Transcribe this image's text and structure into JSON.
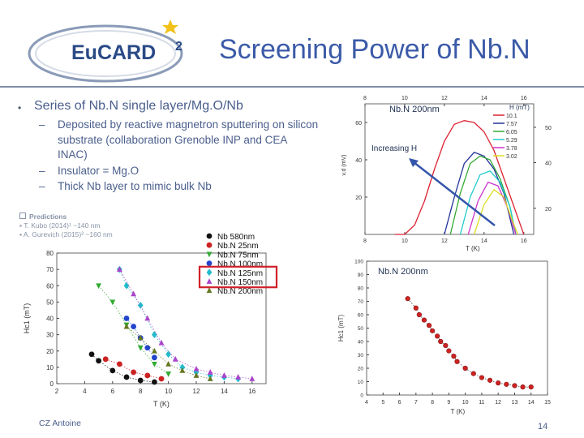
{
  "slide": {
    "title": "Screening Power of Nb.N",
    "logo_text": "EuCARD",
    "logo_superscript": "2",
    "bullet": "Series of Nb.N single layer/Mg.O/Nb",
    "sub_bullets": [
      "Deposited by reactive magnetron sputtering on silicon substrate (collaboration Grenoble INP and CEA INAC)",
      "Insulator = Mg.O",
      "Thick Nb layer to mimic bulk Nb"
    ],
    "predictions": {
      "heading": "Predictions",
      "items": [
        "T. Kubo (2014)¹ ~140 nm",
        "A. Gurevich (2015)² ~160 nm"
      ]
    },
    "footer": "CZ Antoine",
    "page_number": "14",
    "colors": {
      "title": "#3b5aa8",
      "text": "#4a5e8c",
      "highlight_box": "#d0202a",
      "arrow": "#3355aa"
    }
  },
  "chart_data": [
    {
      "type": "scatter",
      "title": "",
      "xlabel": "T (K)",
      "ylabel": "Hc1 (mT)",
      "xlim": [
        2,
        17
      ],
      "ylim": [
        0,
        80
      ],
      "xticks": [
        "2",
        "4",
        "6",
        "8",
        "10",
        "12",
        "14",
        "16"
      ],
      "yticks": [
        "0",
        "10",
        "20",
        "30",
        "40",
        "50",
        "60",
        "70",
        "80"
      ],
      "legend": [
        "Nb 580nm",
        "Nb.N 25nm",
        "Nb.N 75nm",
        "Nb.N 100nm",
        "Nb.N 125nm",
        "Nb.N 150nm",
        "Nb.N 200nm"
      ],
      "highlighted": [
        "Nb.N 125nm",
        "Nb.N 150nm"
      ],
      "series": [
        {
          "name": "Nb 580nm",
          "color": "#111111",
          "marker": "circle",
          "x": [
            4.5,
            5,
            6,
            7,
            8,
            9
          ],
          "y": [
            18,
            14,
            8,
            4,
            2,
            1
          ]
        },
        {
          "name": "Nb.N 25nm",
          "color": "#cc2222",
          "marker": "circle",
          "x": [
            5.5,
            6.5,
            7.5,
            8.5,
            9.5
          ],
          "y": [
            15,
            12,
            7,
            5,
            3
          ]
        },
        {
          "name": "Nb.N 75nm",
          "color": "#33aa33",
          "marker": "triangle-down",
          "x": [
            5,
            6,
            7,
            8,
            9,
            10
          ],
          "y": [
            60,
            50,
            36,
            22,
            12,
            6
          ]
        },
        {
          "name": "Nb.N 100nm",
          "color": "#2244cc",
          "marker": "circle",
          "x": [
            7,
            7.5,
            8,
            8.5,
            9
          ],
          "y": [
            40,
            35,
            28,
            22,
            16
          ]
        },
        {
          "name": "Nb.N 125nm",
          "color": "#22bbcc",
          "marker": "diamond",
          "x": [
            6.5,
            7,
            8,
            9,
            10,
            11,
            12,
            13,
            14,
            15
          ],
          "y": [
            70,
            60,
            48,
            30,
            18,
            10,
            7,
            5,
            4,
            3
          ]
        },
        {
          "name": "Nb.N 150nm",
          "color": "#aa44cc",
          "marker": "triangle-up",
          "x": [
            6.5,
            7.5,
            8.5,
            9.5,
            10.5,
            12,
            13,
            14,
            15,
            16
          ],
          "y": [
            70,
            55,
            40,
            25,
            15,
            9,
            7,
            5,
            4,
            3
          ]
        },
        {
          "name": "Nb.N 200nm",
          "color": "#667722",
          "marker": "triangle-up",
          "x": [
            7,
            8,
            9,
            10,
            11,
            12,
            13
          ],
          "y": [
            35,
            28,
            20,
            12,
            8,
            5,
            3
          ]
        }
      ]
    },
    {
      "type": "line",
      "title": "Nb.N 200nm",
      "xlabel": "T (K)",
      "ylabel": "v.d (mV)",
      "xlim": [
        8,
        16.5
      ],
      "ylim": [
        0,
        70
      ],
      "xticks": [
        "8",
        "10",
        "12",
        "14",
        "16"
      ],
      "yticks": [
        "20",
        "40",
        "60"
      ],
      "right_yticks": [
        "20",
        "40",
        "50"
      ],
      "legend_title": "H (mT)",
      "legend": [
        "10.1",
        "7.57",
        "6.05",
        "5.29",
        "3.78",
        "3.02"
      ],
      "annotation": "Increasing H",
      "series": [
        {
          "name": "10.1",
          "color": "#dd2233",
          "x": [
            9.5,
            10,
            10.5,
            11,
            11.5,
            12,
            12.5,
            13,
            13.5,
            14,
            14.5,
            15,
            15.5,
            16
          ],
          "y": [
            0,
            0,
            5,
            18,
            35,
            50,
            59,
            61,
            60,
            55,
            45,
            30,
            15,
            0
          ]
        },
        {
          "name": "7.57",
          "color": "#223399",
          "x": [
            12,
            12.5,
            13,
            13.5,
            14,
            14.5,
            15,
            15.5
          ],
          "y": [
            0,
            20,
            38,
            44,
            42,
            35,
            22,
            0
          ]
        },
        {
          "name": "6.05",
          "color": "#33aa33",
          "x": [
            12.3,
            12.8,
            13.3,
            13.8,
            14.3,
            14.8,
            15.3,
            15.6
          ],
          "y": [
            0,
            22,
            38,
            42,
            40,
            30,
            15,
            0
          ]
        },
        {
          "name": "5.29",
          "color": "#22cccc",
          "x": [
            12.8,
            13.3,
            13.8,
            14.3,
            14.8,
            15.3,
            15.6
          ],
          "y": [
            0,
            20,
            32,
            34,
            28,
            15,
            0
          ]
        },
        {
          "name": "3.78",
          "color": "#cc33cc",
          "x": [
            13.2,
            13.7,
            14.2,
            14.7,
            15.2,
            15.6
          ],
          "y": [
            0,
            18,
            28,
            26,
            14,
            0
          ]
        },
        {
          "name": "3.02",
          "color": "#dddd22",
          "x": [
            13.5,
            14,
            14.5,
            15,
            15.4,
            15.7
          ],
          "y": [
            0,
            16,
            24,
            20,
            8,
            0
          ]
        }
      ]
    },
    {
      "type": "scatter",
      "title": "Nb.N 200nm",
      "xlabel": "T (K)",
      "ylabel": "Hc1 (mT)",
      "xlim": [
        4,
        15
      ],
      "ylim": [
        0,
        100
      ],
      "xticks": [
        "4",
        "5",
        "6",
        "7",
        "8",
        "9",
        "10",
        "11",
        "12",
        "13",
        "14",
        "15"
      ],
      "yticks": [
        "0",
        "10",
        "20",
        "30",
        "40",
        "50",
        "60",
        "70",
        "80",
        "90",
        "100"
      ],
      "series": [
        {
          "name": "Nb.N 200nm",
          "color": "#cc2222",
          "marker": "circle",
          "x": [
            6.5,
            7,
            7.2,
            7.5,
            7.8,
            8,
            8.3,
            8.5,
            8.8,
            9,
            9.3,
            9.5,
            10,
            10.5,
            11,
            11.5,
            12,
            12.5,
            13,
            13.5,
            14
          ],
          "y": [
            72,
            65,
            60,
            56,
            52,
            48,
            44,
            40,
            37,
            33,
            29,
            25,
            20,
            16,
            13,
            11,
            9,
            8,
            7,
            6,
            6
          ]
        }
      ]
    }
  ]
}
